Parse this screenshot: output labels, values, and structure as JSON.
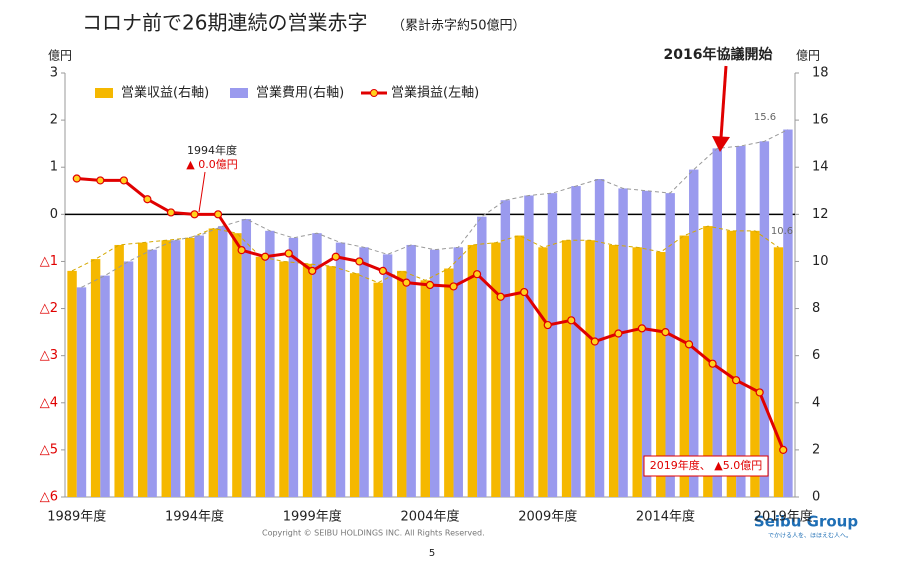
{
  "chart_data": {
    "type": "bar-line",
    "title": "コロナ前で26期連続の営業赤字",
    "subtitle": "（累計赤字約50億円）",
    "y_label": "億円",
    "y2_label": "億円",
    "categories": [
      "1989年度",
      null,
      null,
      null,
      null,
      "1994年度",
      null,
      null,
      null,
      null,
      "1999年度",
      null,
      null,
      null,
      null,
      "2004年度",
      null,
      null,
      null,
      null,
      "2009年度",
      null,
      null,
      null,
      null,
      "2014年度",
      null,
      null,
      null,
      null,
      "2019年度"
    ],
    "ylim": [
      -6,
      3
    ],
    "yticks": [
      3,
      2,
      1,
      0,
      {
        "value": -1,
        "label": "△1"
      },
      {
        "value": -2,
        "label": "△2"
      },
      {
        "value": -3,
        "label": "△3"
      },
      {
        "value": -4,
        "label": "△4"
      },
      {
        "value": -5,
        "label": "△5"
      },
      {
        "value": -6,
        "label": "△6"
      }
    ],
    "y2lim": [
      0,
      18
    ],
    "y2ticks": [
      0,
      2,
      4,
      6,
      8,
      10,
      12,
      14,
      16,
      18
    ],
    "grid": false,
    "legend": "upper left",
    "series": [
      {
        "name": "営業収益(右軸)",
        "kind": "bar",
        "axis": "y2",
        "color": "#f5b800",
        "values": [
          9.6,
          10.1,
          10.7,
          10.8,
          10.9,
          11.0,
          11.4,
          11.2,
          10.2,
          10.0,
          9.9,
          9.8,
          9.5,
          9.1,
          9.6,
          9.2,
          9.7,
          10.7,
          10.8,
          11.1,
          10.6,
          10.9,
          10.9,
          10.7,
          10.6,
          10.4,
          11.1,
          11.5,
          11.3,
          11.3,
          10.6
        ]
      },
      {
        "name": "営業費用(右軸)",
        "kind": "bar",
        "axis": "y2",
        "color": "#9a9aee",
        "values": [
          8.9,
          9.4,
          10.0,
          10.5,
          10.9,
          11.1,
          11.5,
          11.8,
          11.3,
          11.0,
          11.2,
          10.8,
          10.6,
          10.3,
          10.7,
          10.5,
          10.6,
          11.9,
          12.6,
          12.8,
          12.9,
          13.2,
          13.5,
          13.1,
          13.0,
          12.9,
          13.9,
          14.8,
          14.9,
          15.1,
          15.6
        ]
      },
      {
        "name": "営業損益(左軸)",
        "kind": "line",
        "axis": "y",
        "color": "#e00000",
        "values": [
          0.76,
          0.72,
          0.72,
          0.32,
          0.04,
          0.0,
          0.0,
          -0.76,
          -0.9,
          -0.83,
          -1.2,
          -0.9,
          -1.0,
          -1.2,
          -1.45,
          -1.5,
          -1.53,
          -1.27,
          -1.75,
          -1.65,
          -2.35,
          -2.25,
          -2.7,
          -2.53,
          -2.42,
          -2.5,
          -2.76,
          -3.17,
          -3.52,
          -3.78,
          -5.0
        ]
      }
    ],
    "annotations": [
      "15.6",
      "10.6",
      "1994年度",
      "▲  0.0億円",
      "2019年度、 ▲5.0億円",
      "2016年協議開始"
    ]
  },
  "page": {
    "copyright": "Copyright © SEIBU HOLDINGS INC. All Rights Reserved.",
    "page_number": "5",
    "logo": "Seibu Group",
    "tagline": "でかける人を、ほほえむ人へ。"
  }
}
